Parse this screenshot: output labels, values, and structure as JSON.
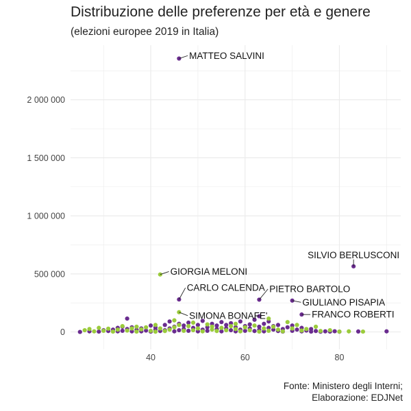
{
  "chart_data": {
    "type": "scatter",
    "title": "Distribuzione delle preferenze per età e genere",
    "subtitle": "(elezioni europee 2019 in Italia)",
    "caption_line1": "Fonte: Ministero degli Interni;",
    "caption_line2": "Elaborazione: EDJNet",
    "xlabel": "",
    "ylabel": "",
    "xlim": [
      23,
      93
    ],
    "ylim": [
      -150000,
      2470000
    ],
    "x_ticks": [
      40,
      60,
      80
    ],
    "x_tick_labels": [
      "40",
      "60",
      "80"
    ],
    "y_ticks": [
      0,
      500000,
      1000000,
      1500000,
      2000000
    ],
    "y_tick_labels": [
      "0",
      "500 000",
      "1 000 000",
      "1 500 000",
      "2 000 000"
    ],
    "grid": true,
    "colors": {
      "male": "#6a2c8f",
      "female": "#9bcb3c",
      "grid": "#ebebeb",
      "label_line": "#222222"
    },
    "series": [
      {
        "key": "male",
        "color": "#6a2c8f",
        "points": [
          [
            46,
            2355000
          ],
          [
            83,
            565000
          ],
          [
            46,
            280000
          ],
          [
            63,
            278000
          ],
          [
            70,
            270000
          ],
          [
            72,
            150000
          ],
          [
            63,
            135000
          ],
          [
            35,
            115000
          ],
          [
            25,
            0
          ],
          [
            27,
            5000
          ],
          [
            29,
            3000
          ],
          [
            30,
            15000
          ],
          [
            31,
            8000
          ],
          [
            32,
            20000
          ],
          [
            33,
            35000
          ],
          [
            33,
            5000
          ],
          [
            34,
            10000
          ],
          [
            34,
            45000
          ],
          [
            35,
            25000
          ],
          [
            36,
            5000
          ],
          [
            36,
            40000
          ],
          [
            37,
            18000
          ],
          [
            38,
            30000
          ],
          [
            38,
            5000
          ],
          [
            39,
            12000
          ],
          [
            40,
            55000
          ],
          [
            40,
            3000
          ],
          [
            41,
            20000
          ],
          [
            41,
            40000
          ],
          [
            42,
            8000
          ],
          [
            43,
            60000
          ],
          [
            43,
            15000
          ],
          [
            44,
            30000
          ],
          [
            44,
            90000
          ],
          [
            45,
            5000
          ],
          [
            45,
            45000
          ],
          [
            46,
            70000
          ],
          [
            46,
            15000
          ],
          [
            47,
            25000
          ],
          [
            47,
            55000
          ],
          [
            48,
            10000
          ],
          [
            48,
            80000
          ],
          [
            49,
            35000
          ],
          [
            50,
            5000
          ],
          [
            50,
            60000
          ],
          [
            51,
            20000
          ],
          [
            51,
            95000
          ],
          [
            52,
            40000
          ],
          [
            52,
            10000
          ],
          [
            53,
            70000
          ],
          [
            54,
            25000
          ],
          [
            54,
            55000
          ],
          [
            55,
            5000
          ],
          [
            55,
            85000
          ],
          [
            56,
            30000
          ],
          [
            56,
            60000
          ],
          [
            57,
            15000
          ],
          [
            57,
            75000
          ],
          [
            58,
            40000
          ],
          [
            58,
            5000
          ],
          [
            59,
            90000
          ],
          [
            59,
            20000
          ],
          [
            60,
            50000
          ],
          [
            60,
            10000
          ],
          [
            61,
            30000
          ],
          [
            61,
            65000
          ],
          [
            62,
            8000
          ],
          [
            62,
            105000
          ],
          [
            63,
            45000
          ],
          [
            63,
            18000
          ],
          [
            64,
            70000
          ],
          [
            64,
            5000
          ],
          [
            65,
            35000
          ],
          [
            65,
            90000
          ],
          [
            66,
            20000
          ],
          [
            66,
            50000
          ],
          [
            67,
            8000
          ],
          [
            67,
            60000
          ],
          [
            68,
            25000
          ],
          [
            68,
            3000
          ],
          [
            69,
            40000
          ],
          [
            70,
            10000
          ],
          [
            70,
            55000
          ],
          [
            71,
            20000
          ],
          [
            72,
            5000
          ],
          [
            72,
            35000
          ],
          [
            73,
            12000
          ],
          [
            74,
            3000
          ],
          [
            74,
            25000
          ],
          [
            75,
            8000
          ],
          [
            76,
            2000
          ],
          [
            77,
            5000
          ],
          [
            78,
            3000
          ],
          [
            79,
            6000
          ],
          [
            80,
            2000
          ],
          [
            84,
            4000
          ],
          [
            90,
            5000
          ]
        ]
      },
      {
        "key": "female",
        "color": "#9bcb3c",
        "points": [
          [
            42,
            495000
          ],
          [
            46,
            170000
          ],
          [
            26,
            15000
          ],
          [
            27,
            25000
          ],
          [
            28,
            5000
          ],
          [
            29,
            35000
          ],
          [
            30,
            10000
          ],
          [
            31,
            28000
          ],
          [
            32,
            3000
          ],
          [
            33,
            20000
          ],
          [
            34,
            50000
          ],
          [
            35,
            12000
          ],
          [
            36,
            30000
          ],
          [
            37,
            45000
          ],
          [
            37,
            3000
          ],
          [
            38,
            22000
          ],
          [
            39,
            40000
          ],
          [
            40,
            10000
          ],
          [
            41,
            60000
          ],
          [
            41,
            2000
          ],
          [
            42,
            30000
          ],
          [
            43,
            8000
          ],
          [
            44,
            20000
          ],
          [
            45,
            100000
          ],
          [
            45,
            40000
          ],
          [
            46,
            60000
          ],
          [
            47,
            10000
          ],
          [
            48,
            50000
          ],
          [
            49,
            15000
          ],
          [
            49,
            80000
          ],
          [
            50,
            30000
          ],
          [
            51,
            5000
          ],
          [
            52,
            65000
          ],
          [
            53,
            20000
          ],
          [
            53,
            45000
          ],
          [
            54,
            8000
          ],
          [
            55,
            35000
          ],
          [
            56,
            15000
          ],
          [
            57,
            50000
          ],
          [
            58,
            25000
          ],
          [
            58,
            70000
          ],
          [
            59,
            5000
          ],
          [
            60,
            40000
          ],
          [
            61,
            15000
          ],
          [
            62,
            55000
          ],
          [
            63,
            3000
          ],
          [
            64,
            30000
          ],
          [
            65,
            115000
          ],
          [
            65,
            10000
          ],
          [
            66,
            45000
          ],
          [
            67,
            20000
          ],
          [
            68,
            5000
          ],
          [
            69,
            85000
          ],
          [
            70,
            30000
          ],
          [
            71,
            60000
          ],
          [
            72,
            12000
          ],
          [
            73,
            25000
          ],
          [
            75,
            45000
          ],
          [
            76,
            8000
          ],
          [
            78,
            15000
          ],
          [
            80,
            3000
          ],
          [
            82,
            5000
          ],
          [
            85,
            3000
          ]
        ]
      }
    ],
    "annotations": [
      {
        "name": "MATTEO SALVINI",
        "x": 46,
        "y": 2355000,
        "lx": 48,
        "ly": 2380000,
        "anchor": "start"
      },
      {
        "name": "SILVIO BERLUSCONI",
        "x": 83,
        "y": 565000,
        "lx": 83,
        "ly": 660000,
        "anchor": "middle"
      },
      {
        "name": "GIORGIA MELONI",
        "x": 42,
        "y": 495000,
        "lx": 44,
        "ly": 520000,
        "anchor": "start"
      },
      {
        "name": "CARLO CALENDA",
        "x": 46,
        "y": 280000,
        "lx": 47.5,
        "ly": 380000,
        "anchor": "start"
      },
      {
        "name": "PIETRO BARTOLO",
        "x": 63,
        "y": 278000,
        "lx": 65,
        "ly": 370000,
        "anchor": "start"
      },
      {
        "name": "GIULIANO PISAPIA",
        "x": 70,
        "y": 270000,
        "lx": 72,
        "ly": 255000,
        "anchor": "start"
      },
      {
        "name": "FRANCO ROBERTI",
        "x": 72,
        "y": 150000,
        "lx": 74,
        "ly": 150000,
        "anchor": "start"
      },
      {
        "name": "SIMONA BONAFE'",
        "x": 46,
        "y": 170000,
        "lx": 48,
        "ly": 140000,
        "anchor": "start"
      }
    ]
  }
}
